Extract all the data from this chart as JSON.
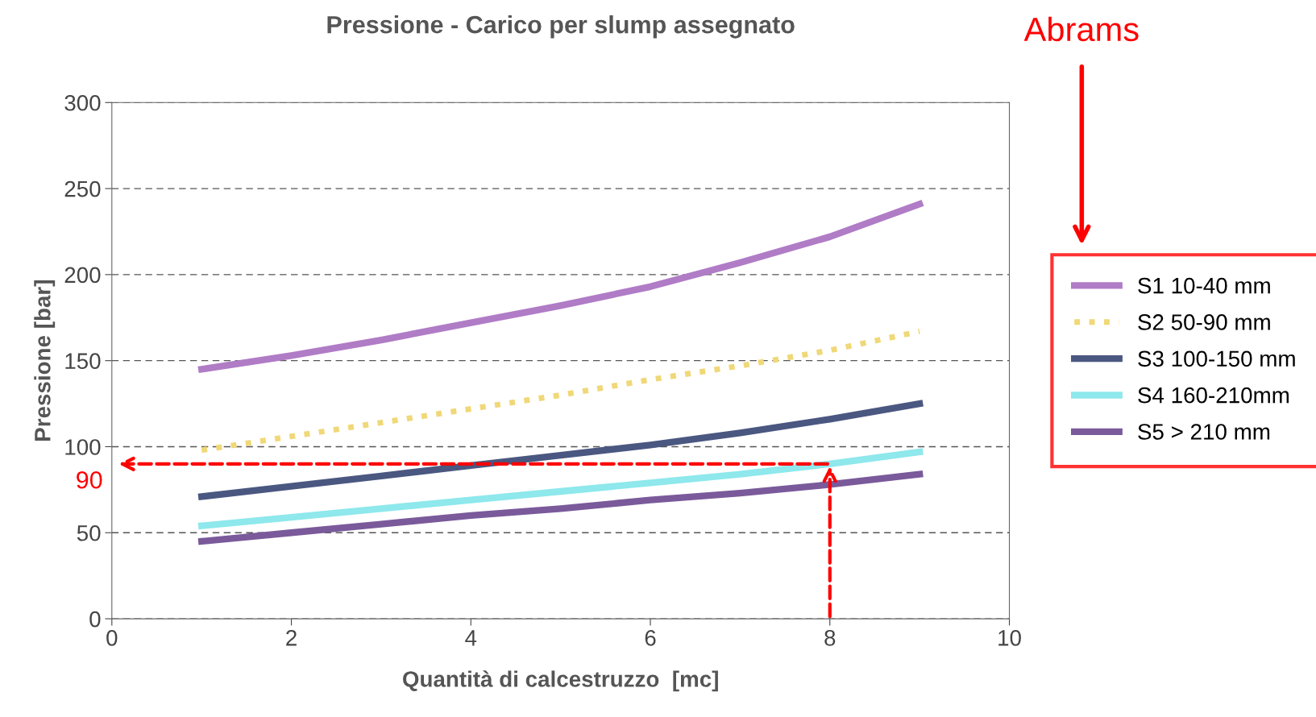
{
  "chart_data": {
    "type": "line",
    "title": "Pressione - Carico per slump assegnato",
    "xlabel": "Quantità di calcestruzzo  [mc]",
    "ylabel": "Pressione [bar]",
    "x": [
      1,
      2,
      3,
      4,
      5,
      6,
      7,
      8,
      9
    ],
    "series": [
      {
        "name": "S1 10-40 mm",
        "color": "#b07cc6",
        "values": [
          145,
          153,
          162,
          172,
          182,
          193,
          207,
          222,
          241
        ]
      },
      {
        "name": "S2 50-90 mm",
        "color": "#f0d878",
        "line_style": "dotted",
        "values": [
          98,
          106,
          114,
          122,
          130,
          139,
          147,
          156,
          167
        ]
      },
      {
        "name": "S3 100-150 mm",
        "color": "#4a5780",
        "values": [
          71,
          77,
          83,
          89,
          95,
          101,
          108,
          116,
          125
        ]
      },
      {
        "name": "S4 160-210mm",
        "color": "#8ee8ec",
        "values": [
          54,
          59,
          64,
          69,
          74,
          79,
          84,
          90,
          97
        ]
      },
      {
        "name": "S5 > 210 mm",
        "color": "#7a5a9a",
        "values": [
          45,
          50,
          55,
          60,
          64,
          69,
          73,
          78,
          84
        ]
      }
    ],
    "xlim": [
      0,
      10
    ],
    "xticks": [
      0,
      2,
      4,
      6,
      8,
      10
    ],
    "ylim": [
      0,
      300
    ],
    "yticks": [
      0,
      50,
      100,
      150,
      200,
      250,
      300
    ],
    "grid": "y",
    "legend": "right",
    "marker": "none",
    "line_style": "solid",
    "annotations": [
      {
        "text": "90",
        "x": 8,
        "y": 90
      },
      "Abrams"
    ]
  }
}
